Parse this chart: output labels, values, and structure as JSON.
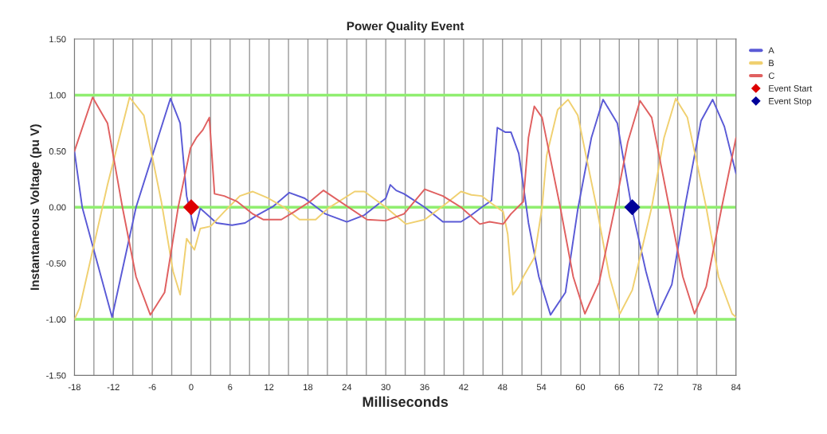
{
  "chart_data": {
    "type": "line",
    "title": "Power Quality Event",
    "xlabel": "Milliseconds",
    "ylabel": "Instantaneous Voltage (pu V)",
    "xlim": [
      -18,
      84
    ],
    "xticks": [
      -18,
      {
        "value": -15,
        "label": null
      },
      -12,
      {
        "value": -9,
        "label": null
      },
      -6,
      {
        "value": -3,
        "label": null
      },
      0,
      {
        "value": 3,
        "label": null
      },
      6,
      {
        "value": 9,
        "label": null
      },
      12,
      {
        "value": 15,
        "label": null
      },
      18,
      {
        "value": 21,
        "label": null
      },
      24,
      {
        "value": 27,
        "label": null
      },
      30,
      {
        "value": 33,
        "label": null
      },
      36,
      {
        "value": 39,
        "label": null
      },
      42,
      {
        "value": 45,
        "label": null
      },
      48,
      {
        "value": 51,
        "label": null
      },
      54,
      {
        "value": 57,
        "label": null
      },
      60,
      {
        "value": 63,
        "label": null
      },
      66,
      {
        "value": 69,
        "label": null
      },
      72,
      {
        "value": 75,
        "label": null
      },
      78,
      {
        "value": 81,
        "label": null
      },
      84
    ],
    "ylim": [
      -1.5,
      1.5
    ],
    "yticks": [
      {
        "value": -1.5,
        "label": "-1.50"
      },
      {
        "value": -1.0,
        "label": "-1.00"
      },
      {
        "value": -0.5,
        "label": "-0.50"
      },
      {
        "value": 0,
        "label": "0.00"
      },
      {
        "value": 0.5,
        "label": "0.50"
      },
      {
        "value": 1.0,
        "label": "1.00"
      },
      {
        "value": 1.5,
        "label": "1.50"
      }
    ],
    "grid": "x",
    "legend": "right",
    "ref_lines": [
      {
        "axis": "y",
        "value": 1.0,
        "color": "#90ee70"
      },
      {
        "axis": "y",
        "value": 0,
        "color": "#90ee70"
      },
      {
        "axis": "y",
        "value": -1.0,
        "color": "#90ee70"
      }
    ],
    "series": [
      {
        "name": "A",
        "marker": "none",
        "color": "#5a5ad6",
        "x": [
          -18,
          -16.8,
          -12.2,
          -8.5,
          -3.2,
          -1.7,
          -0.7,
          0.5,
          1.4,
          3.9,
          6.3,
          8.3,
          10.2,
          12.7,
          15.1,
          17.5,
          20.7,
          24,
          26.7,
          30,
          30.7,
          31.6,
          32.8,
          36,
          38.8,
          41.6,
          43.2,
          44.8,
          46.3,
          47.2,
          48.4,
          49.3,
          50.5,
          51.2,
          52,
          53.6,
          55.4,
          57.7,
          59.6,
          61.7,
          63.5,
          65.7,
          67.9,
          70.1,
          71.9,
          74.1,
          76.1,
          78.6,
          80.4,
          82.2,
          84
        ],
        "values": [
          0.5,
          0,
          -0.98,
          0,
          0.97,
          0.75,
          0.1,
          -0.21,
          -0.01,
          -0.14,
          -0.16,
          -0.14,
          -0.07,
          0.01,
          0.13,
          0.08,
          -0.06,
          -0.13,
          -0.07,
          0.08,
          0.2,
          0.15,
          0.12,
          0,
          -0.13,
          -0.13,
          -0.07,
          0,
          0.06,
          0.71,
          0.67,
          0.67,
          0.48,
          0.2,
          -0.14,
          -0.62,
          -0.96,
          -0.76,
          -0.02,
          0.62,
          0.96,
          0.75,
          0,
          -0.57,
          -0.96,
          -0.69,
          0,
          0.77,
          0.96,
          0.72,
          0.3
        ]
      },
      {
        "name": "B",
        "marker": "none",
        "color": "#f0d070",
        "x": [
          -18,
          -17.2,
          -12.9,
          -9.5,
          -7.3,
          -4.6,
          -2.8,
          -1.7,
          -0.7,
          0.5,
          1.4,
          3,
          5.1,
          7.5,
          9.5,
          11.9,
          14.3,
          16.7,
          19.2,
          21.1,
          25.2,
          26.7,
          30,
          33.1,
          36,
          38.8,
          41.6,
          43.2,
          44.8,
          46.4,
          48.1,
          48.8,
          49.6,
          50.5,
          51.2,
          52.9,
          54.1,
          54.8,
          56.5,
          58.1,
          59.6,
          62.5,
          64.5,
          66.1,
          68,
          71,
          72.9,
          74.7,
          76.5,
          79.4,
          81.3,
          83.4,
          84
        ],
        "values": [
          -1.0,
          -0.9,
          0.2,
          0.98,
          0.82,
          0.05,
          -0.57,
          -0.78,
          -0.28,
          -0.38,
          -0.19,
          -0.17,
          -0.04,
          0.1,
          0.14,
          0.08,
          0,
          -0.11,
          -0.11,
          -0.01,
          0.14,
          0.14,
          0,
          -0.15,
          -0.11,
          0.01,
          0.14,
          0.11,
          0.1,
          0.03,
          -0.04,
          -0.24,
          -0.78,
          -0.71,
          -0.62,
          -0.45,
          0,
          0.46,
          0.87,
          0.96,
          0.82,
          0,
          -0.62,
          -0.95,
          -0.74,
          0,
          0.62,
          0.97,
          0.8,
          0,
          -0.62,
          -0.95,
          -0.98
        ]
      },
      {
        "name": "C",
        "marker": "none",
        "color": "#e06060",
        "x": [
          -18,
          -15.2,
          -12.9,
          -10.6,
          -8.5,
          -6.3,
          -4.1,
          -2,
          -0.1,
          0.8,
          1.8,
          2.8,
          3.6,
          5.1,
          7.1,
          9.5,
          11.1,
          13.9,
          15.9,
          18.3,
          20.4,
          24,
          27.1,
          30,
          32.8,
          36,
          38.8,
          41.6,
          44.5,
          46,
          48.1,
          49.3,
          51.2,
          52,
          52.9,
          54.1,
          56.9,
          58.9,
          60.7,
          62.9,
          65.7,
          67.3,
          69.2,
          71,
          73.7,
          75.8,
          77.6,
          79.4,
          81.8,
          84
        ],
        "values": [
          0.5,
          0.98,
          0.75,
          0,
          -0.62,
          -0.96,
          -0.76,
          0,
          0.53,
          0.62,
          0.69,
          0.8,
          0.12,
          0.1,
          0.05,
          -0.06,
          -0.11,
          -0.11,
          -0.04,
          0.05,
          0.15,
          0.01,
          -0.11,
          -0.12,
          -0.06,
          0.16,
          0.1,
          0,
          -0.15,
          -0.13,
          -0.15,
          -0.06,
          0.05,
          0.62,
          0.9,
          0.8,
          0,
          -0.62,
          -0.95,
          -0.67,
          0.1,
          0.58,
          0.95,
          0.8,
          0,
          -0.62,
          -0.95,
          -0.71,
          0,
          0.62
        ]
      },
      {
        "name": "Event Start",
        "type": "scatter",
        "marker": "diamond",
        "color": "#dd0000",
        "x": [
          0
        ],
        "values": [
          0
        ]
      },
      {
        "name": "Event Stop",
        "type": "scatter",
        "marker": "diamond",
        "color": "#000099",
        "x": [
          68
        ],
        "values": [
          0
        ]
      }
    ]
  }
}
